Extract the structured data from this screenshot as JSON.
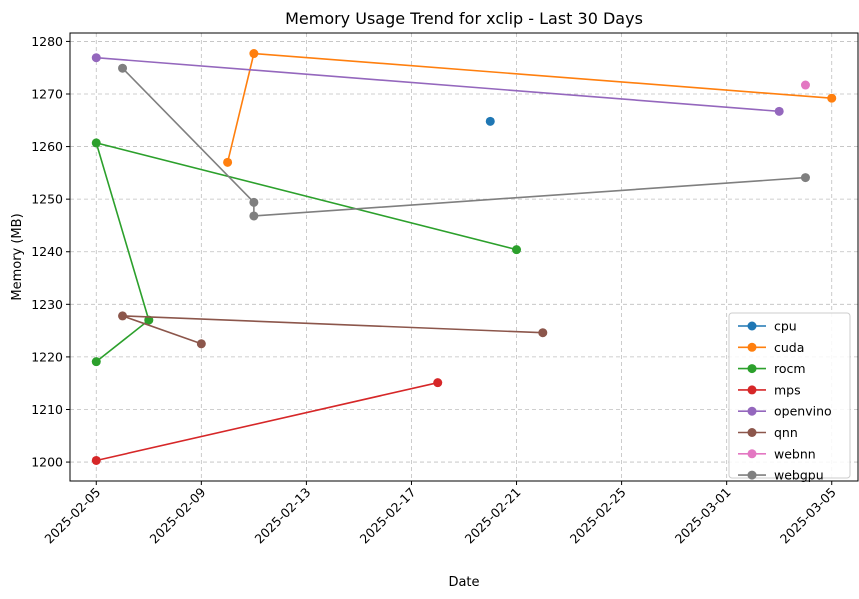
{
  "chart_data": {
    "type": "line",
    "title": "Memory Usage Trend for xclip - Last 30 Days",
    "xlabel": "Date",
    "ylabel": "Memory (MB)",
    "x_ticks": [
      "2025-02-05",
      "2025-02-09",
      "2025-02-13",
      "2025-02-17",
      "2025-02-21",
      "2025-02-25",
      "2025-03-01",
      "2025-03-05"
    ],
    "y_ticks": [
      1200,
      1210,
      1220,
      1230,
      1240,
      1250,
      1260,
      1270,
      1280
    ],
    "xlim": [
      "2025-02-04",
      "2025-03-06"
    ],
    "ylim": [
      1196.4,
      1281.6
    ],
    "grid": true,
    "legend_position": "lower right",
    "series": [
      {
        "name": "cpu",
        "color": "#1f77b4",
        "points": [
          [
            "2025-02-20",
            1264.8
          ]
        ]
      },
      {
        "name": "cuda",
        "color": "#ff7f0e",
        "points": [
          [
            "2025-02-10",
            1257.0
          ],
          [
            "2025-02-11",
            1277.7
          ],
          [
            "2025-03-05",
            1269.2
          ]
        ]
      },
      {
        "name": "rocm",
        "color": "#2ca02c",
        "points": [
          [
            "2025-02-05",
            1219.1
          ],
          [
            "2025-02-07",
            1227.0
          ],
          [
            "2025-02-05",
            1260.7
          ],
          [
            "2025-02-21",
            1240.4
          ]
        ]
      },
      {
        "name": "mps",
        "color": "#d62728",
        "points": [
          [
            "2025-02-05",
            1200.3
          ],
          [
            "2025-02-18",
            1215.1
          ]
        ]
      },
      {
        "name": "openvino",
        "color": "#9467bd",
        "points": [
          [
            "2025-02-05",
            1276.9
          ],
          [
            "2025-03-03",
            1266.7
          ]
        ]
      },
      {
        "name": "qnn",
        "color": "#8c564b",
        "points": [
          [
            "2025-02-09",
            1222.5
          ],
          [
            "2025-02-06",
            1227.8
          ],
          [
            "2025-02-22",
            1224.6
          ]
        ]
      },
      {
        "name": "webnn",
        "color": "#e377c2",
        "points": [
          [
            "2025-03-04",
            1271.7
          ]
        ]
      },
      {
        "name": "webgpu",
        "color": "#7f7f7f",
        "points": [
          [
            "2025-02-06",
            1274.9
          ],
          [
            "2025-02-11",
            1249.4
          ],
          [
            "2025-02-11",
            1246.8
          ],
          [
            "2025-03-04",
            1254.1
          ]
        ]
      }
    ]
  }
}
